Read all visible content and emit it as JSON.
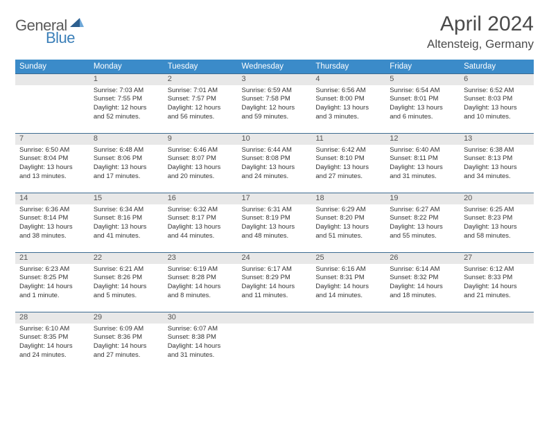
{
  "brand": {
    "part1": "General",
    "part2": "Blue"
  },
  "title": "April 2024",
  "location": "Altensteig, Germany",
  "colors": {
    "header_bg": "#3b8bc9",
    "header_text": "#ffffff",
    "daynum_bg": "#e8e8e8",
    "row_border": "#3b6a90",
    "title_color": "#4a4a4a",
    "logo_gray": "#5a5a5a",
    "logo_blue": "#3b7fb8"
  },
  "weekdays": [
    "Sunday",
    "Monday",
    "Tuesday",
    "Wednesday",
    "Thursday",
    "Friday",
    "Saturday"
  ],
  "weeks": [
    [
      {
        "num": "",
        "lines": []
      },
      {
        "num": "1",
        "lines": [
          "Sunrise: 7:03 AM",
          "Sunset: 7:55 PM",
          "Daylight: 12 hours",
          "and 52 minutes."
        ]
      },
      {
        "num": "2",
        "lines": [
          "Sunrise: 7:01 AM",
          "Sunset: 7:57 PM",
          "Daylight: 12 hours",
          "and 56 minutes."
        ]
      },
      {
        "num": "3",
        "lines": [
          "Sunrise: 6:59 AM",
          "Sunset: 7:58 PM",
          "Daylight: 12 hours",
          "and 59 minutes."
        ]
      },
      {
        "num": "4",
        "lines": [
          "Sunrise: 6:56 AM",
          "Sunset: 8:00 PM",
          "Daylight: 13 hours",
          "and 3 minutes."
        ]
      },
      {
        "num": "5",
        "lines": [
          "Sunrise: 6:54 AM",
          "Sunset: 8:01 PM",
          "Daylight: 13 hours",
          "and 6 minutes."
        ]
      },
      {
        "num": "6",
        "lines": [
          "Sunrise: 6:52 AM",
          "Sunset: 8:03 PM",
          "Daylight: 13 hours",
          "and 10 minutes."
        ]
      }
    ],
    [
      {
        "num": "7",
        "lines": [
          "Sunrise: 6:50 AM",
          "Sunset: 8:04 PM",
          "Daylight: 13 hours",
          "and 13 minutes."
        ]
      },
      {
        "num": "8",
        "lines": [
          "Sunrise: 6:48 AM",
          "Sunset: 8:06 PM",
          "Daylight: 13 hours",
          "and 17 minutes."
        ]
      },
      {
        "num": "9",
        "lines": [
          "Sunrise: 6:46 AM",
          "Sunset: 8:07 PM",
          "Daylight: 13 hours",
          "and 20 minutes."
        ]
      },
      {
        "num": "10",
        "lines": [
          "Sunrise: 6:44 AM",
          "Sunset: 8:08 PM",
          "Daylight: 13 hours",
          "and 24 minutes."
        ]
      },
      {
        "num": "11",
        "lines": [
          "Sunrise: 6:42 AM",
          "Sunset: 8:10 PM",
          "Daylight: 13 hours",
          "and 27 minutes."
        ]
      },
      {
        "num": "12",
        "lines": [
          "Sunrise: 6:40 AM",
          "Sunset: 8:11 PM",
          "Daylight: 13 hours",
          "and 31 minutes."
        ]
      },
      {
        "num": "13",
        "lines": [
          "Sunrise: 6:38 AM",
          "Sunset: 8:13 PM",
          "Daylight: 13 hours",
          "and 34 minutes."
        ]
      }
    ],
    [
      {
        "num": "14",
        "lines": [
          "Sunrise: 6:36 AM",
          "Sunset: 8:14 PM",
          "Daylight: 13 hours",
          "and 38 minutes."
        ]
      },
      {
        "num": "15",
        "lines": [
          "Sunrise: 6:34 AM",
          "Sunset: 8:16 PM",
          "Daylight: 13 hours",
          "and 41 minutes."
        ]
      },
      {
        "num": "16",
        "lines": [
          "Sunrise: 6:32 AM",
          "Sunset: 8:17 PM",
          "Daylight: 13 hours",
          "and 44 minutes."
        ]
      },
      {
        "num": "17",
        "lines": [
          "Sunrise: 6:31 AM",
          "Sunset: 8:19 PM",
          "Daylight: 13 hours",
          "and 48 minutes."
        ]
      },
      {
        "num": "18",
        "lines": [
          "Sunrise: 6:29 AM",
          "Sunset: 8:20 PM",
          "Daylight: 13 hours",
          "and 51 minutes."
        ]
      },
      {
        "num": "19",
        "lines": [
          "Sunrise: 6:27 AM",
          "Sunset: 8:22 PM",
          "Daylight: 13 hours",
          "and 55 minutes."
        ]
      },
      {
        "num": "20",
        "lines": [
          "Sunrise: 6:25 AM",
          "Sunset: 8:23 PM",
          "Daylight: 13 hours",
          "and 58 minutes."
        ]
      }
    ],
    [
      {
        "num": "21",
        "lines": [
          "Sunrise: 6:23 AM",
          "Sunset: 8:25 PM",
          "Daylight: 14 hours",
          "and 1 minute."
        ]
      },
      {
        "num": "22",
        "lines": [
          "Sunrise: 6:21 AM",
          "Sunset: 8:26 PM",
          "Daylight: 14 hours",
          "and 5 minutes."
        ]
      },
      {
        "num": "23",
        "lines": [
          "Sunrise: 6:19 AM",
          "Sunset: 8:28 PM",
          "Daylight: 14 hours",
          "and 8 minutes."
        ]
      },
      {
        "num": "24",
        "lines": [
          "Sunrise: 6:17 AM",
          "Sunset: 8:29 PM",
          "Daylight: 14 hours",
          "and 11 minutes."
        ]
      },
      {
        "num": "25",
        "lines": [
          "Sunrise: 6:16 AM",
          "Sunset: 8:31 PM",
          "Daylight: 14 hours",
          "and 14 minutes."
        ]
      },
      {
        "num": "26",
        "lines": [
          "Sunrise: 6:14 AM",
          "Sunset: 8:32 PM",
          "Daylight: 14 hours",
          "and 18 minutes."
        ]
      },
      {
        "num": "27",
        "lines": [
          "Sunrise: 6:12 AM",
          "Sunset: 8:33 PM",
          "Daylight: 14 hours",
          "and 21 minutes."
        ]
      }
    ],
    [
      {
        "num": "28",
        "lines": [
          "Sunrise: 6:10 AM",
          "Sunset: 8:35 PM",
          "Daylight: 14 hours",
          "and 24 minutes."
        ]
      },
      {
        "num": "29",
        "lines": [
          "Sunrise: 6:09 AM",
          "Sunset: 8:36 PM",
          "Daylight: 14 hours",
          "and 27 minutes."
        ]
      },
      {
        "num": "30",
        "lines": [
          "Sunrise: 6:07 AM",
          "Sunset: 8:38 PM",
          "Daylight: 14 hours",
          "and 31 minutes."
        ]
      },
      {
        "num": "",
        "lines": []
      },
      {
        "num": "",
        "lines": []
      },
      {
        "num": "",
        "lines": []
      },
      {
        "num": "",
        "lines": []
      }
    ]
  ]
}
